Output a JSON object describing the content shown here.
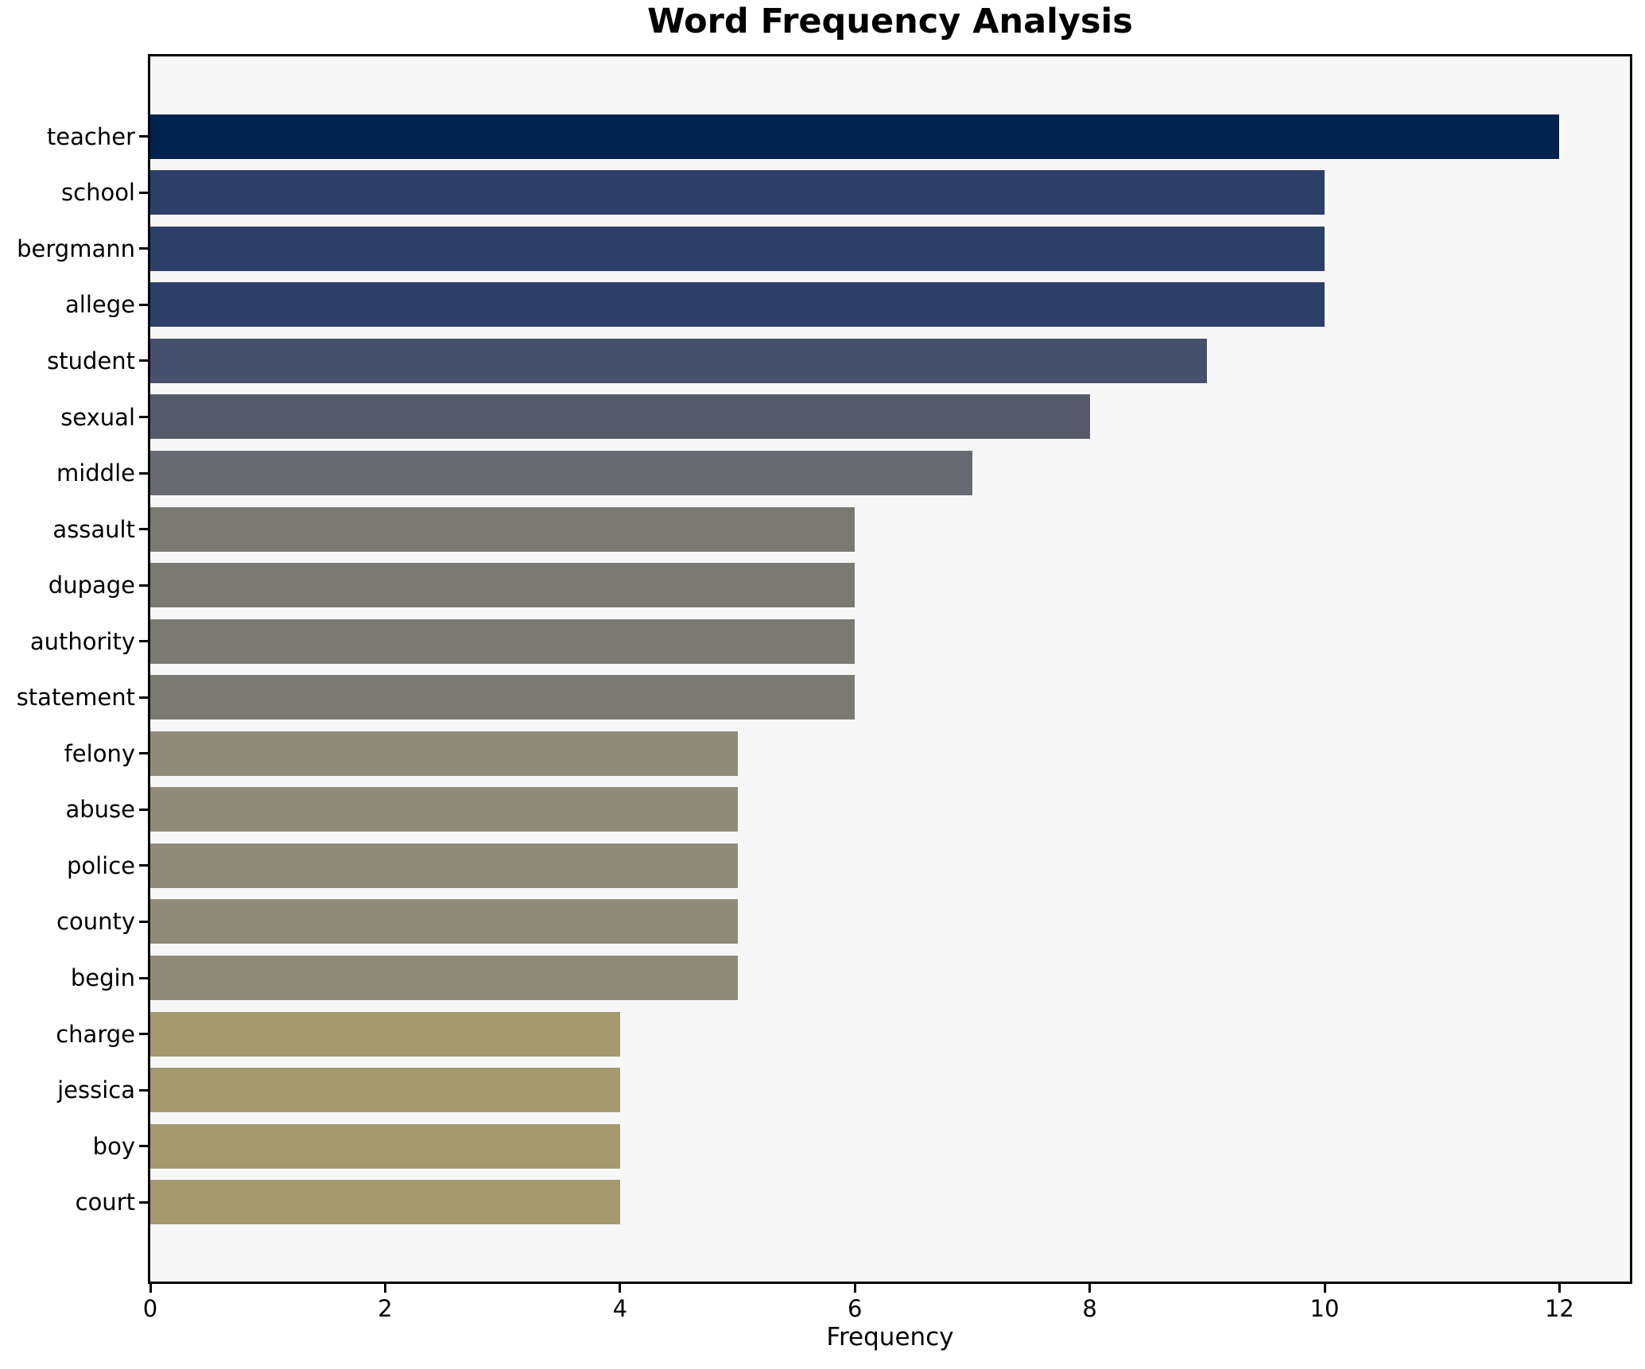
{
  "title": "Word Frequency Analysis",
  "chart_data": {
    "type": "bar",
    "orientation": "horizontal",
    "title": "Word Frequency Analysis",
    "xlabel": "Frequency",
    "ylabel": "",
    "categories": [
      "teacher",
      "school",
      "bergmann",
      "allege",
      "student",
      "sexual",
      "middle",
      "assault",
      "dupage",
      "authority",
      "statement",
      "felony",
      "abuse",
      "police",
      "county",
      "begin",
      "charge",
      "jessica",
      "boy",
      "court"
    ],
    "values": [
      12,
      10,
      10,
      10,
      9,
      8,
      7,
      6,
      6,
      6,
      6,
      5,
      5,
      5,
      5,
      5,
      4,
      4,
      4,
      4
    ],
    "bar_colors": [
      "#00224e",
      "#2d4067",
      "#2d4067",
      "#2d4067",
      "#464f6b",
      "#555b69",
      "#676a70",
      "#7a7a73",
      "#7a7a73",
      "#7a7a73",
      "#7a7a73",
      "#908b76",
      "#908b76",
      "#908b76",
      "#908b76",
      "#908b76",
      "#a49a6f",
      "#a49a6f",
      "#a49a6f",
      "#a49a6f"
    ],
    "x_ticks": [
      0,
      2,
      4,
      6,
      8,
      10,
      12
    ],
    "xlim": [
      0,
      12.6
    ],
    "grid": false,
    "legend": false,
    "plot_background": "#f7f7f8",
    "figure_background": "#ffffff",
    "spine_color": "#000000",
    "text_color": "#000000"
  }
}
